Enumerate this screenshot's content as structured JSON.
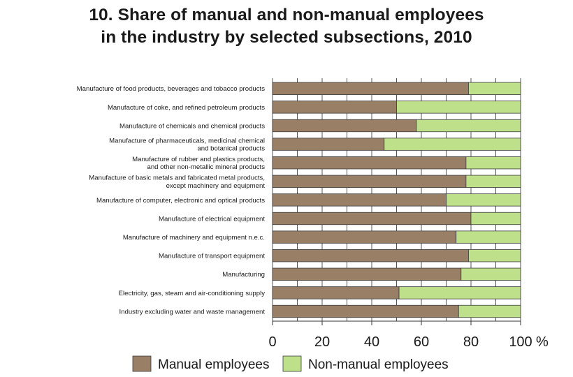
{
  "chart_data": {
    "type": "bar",
    "orientation": "horizontal",
    "stacked": true,
    "title_lines": [
      "10.  Share of manual and non-manual employees",
      "in the industry by selected subsections, 2010"
    ],
    "categories": [
      [
        "Manufacture of food products, beverages and tobacco products"
      ],
      [
        "Manufacture of coke, and refined petroleum products"
      ],
      [
        "Manufacture of chemicals and chemical products"
      ],
      [
        "Manufacture of pharmaceuticals, medicinal chemical",
        "and botanical products"
      ],
      [
        "Manufacture of rubber and plastics products,",
        "and other non-metallic mineral products"
      ],
      [
        "Manufacture of basic metals and fabricated metal products,",
        "except machinery and equipment"
      ],
      [
        "Manufacture of computer, electronic  and optical products"
      ],
      [
        "Manufacture of electrical equipment"
      ],
      [
        "Manufacture of machinery and equipment n.e.c."
      ],
      [
        "Manufacture of transport equipment"
      ],
      [
        "Manufacturing"
      ],
      [
        "Electricity, gas, steam and air-conditioning supply"
      ],
      [
        "Industry excluding water and waste management"
      ]
    ],
    "series": [
      {
        "name": "Manual employees",
        "color": "#9a7f67",
        "values": [
          79,
          50,
          58,
          45,
          78,
          78,
          70,
          80,
          74,
          79,
          76,
          51,
          75
        ]
      },
      {
        "name": "Non-manual employees",
        "color": "#bfe08a",
        "values": [
          21,
          50,
          42,
          55,
          22,
          22,
          30,
          20,
          26,
          21,
          24,
          49,
          25
        ]
      }
    ],
    "x_ticks": [
      "0",
      "20",
      "40",
      "60",
      "80",
      "100"
    ],
    "x_unit": "%",
    "xlim": [
      0,
      100
    ],
    "grid": true,
    "legend_position": "bottom"
  }
}
